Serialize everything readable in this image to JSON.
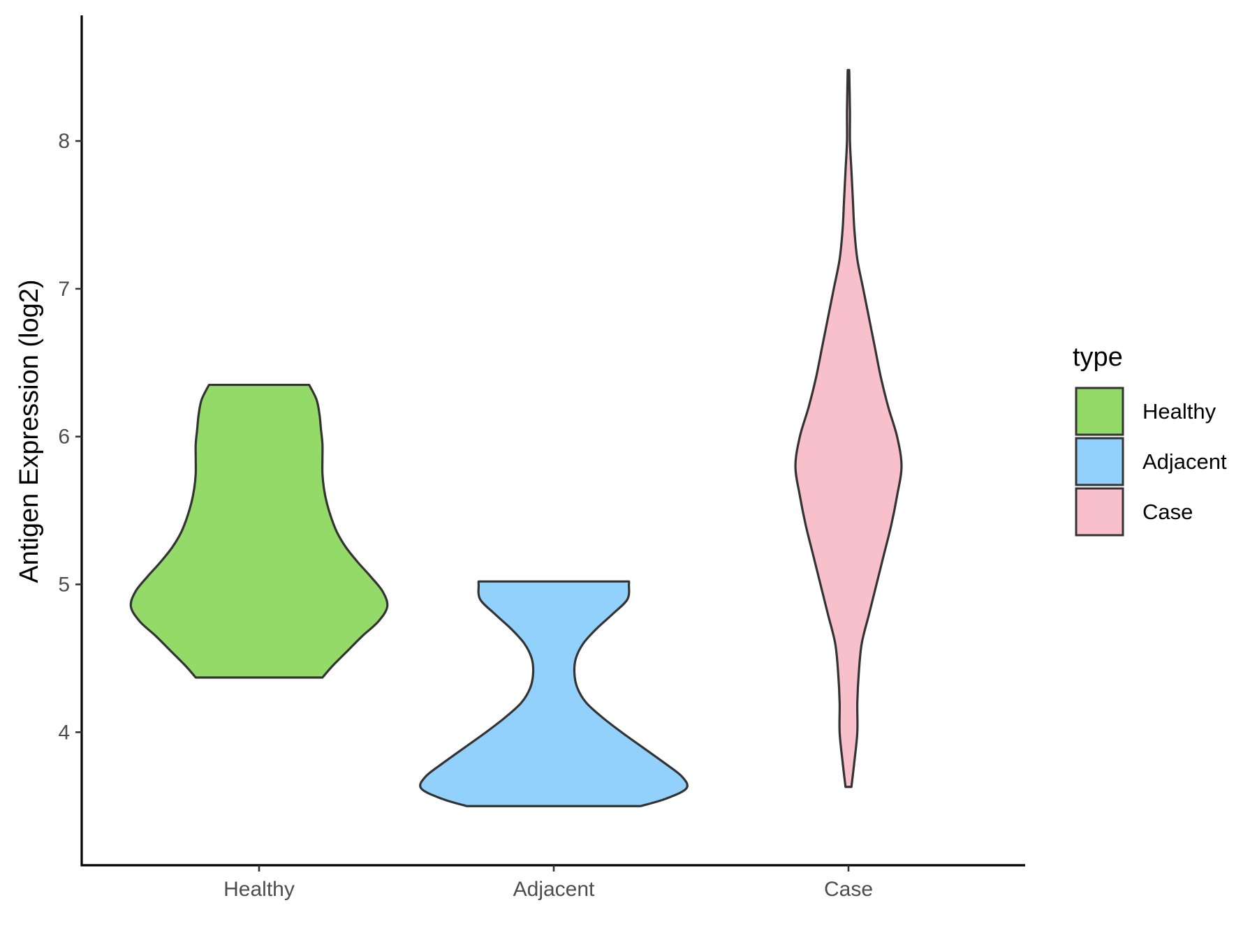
{
  "chart_data": {
    "type": "violin",
    "title": "",
    "xlabel": "",
    "ylabel": "Antigen Expression (log2)",
    "ylim": [
      3.1,
      8.85
    ],
    "yticks": [
      4,
      5,
      6,
      7,
      8
    ],
    "categories": [
      "Healthy",
      "Adjacent",
      "Case"
    ],
    "grid": false,
    "legend": {
      "title": "type",
      "position": "right",
      "entries": [
        "Healthy",
        "Adjacent",
        "Case"
      ]
    },
    "series": [
      {
        "category": "Healthy",
        "color": "#93da69",
        "min": 4.37,
        "max": 6.35,
        "density_profile": [
          [
            4.37,
            0.43
          ],
          [
            4.45,
            0.5
          ],
          [
            4.55,
            0.6
          ],
          [
            4.65,
            0.7
          ],
          [
            4.75,
            0.81
          ],
          [
            4.85,
            0.87
          ],
          [
            4.95,
            0.84
          ],
          [
            5.05,
            0.76
          ],
          [
            5.15,
            0.67
          ],
          [
            5.25,
            0.59
          ],
          [
            5.35,
            0.53
          ],
          [
            5.45,
            0.49
          ],
          [
            5.55,
            0.46
          ],
          [
            5.65,
            0.44
          ],
          [
            5.75,
            0.43
          ],
          [
            5.85,
            0.43
          ],
          [
            5.95,
            0.43
          ],
          [
            6.05,
            0.42
          ],
          [
            6.15,
            0.41
          ],
          [
            6.25,
            0.39
          ],
          [
            6.35,
            0.34
          ]
        ]
      },
      {
        "category": "Adjacent",
        "color": "#93d1fd",
        "min": 3.5,
        "max": 5.02,
        "density_profile": [
          [
            3.5,
            0.59
          ],
          [
            3.55,
            0.76
          ],
          [
            3.62,
            0.9
          ],
          [
            3.7,
            0.87
          ],
          [
            3.8,
            0.74
          ],
          [
            3.9,
            0.6
          ],
          [
            4.0,
            0.46
          ],
          [
            4.1,
            0.33
          ],
          [
            4.2,
            0.22
          ],
          [
            4.3,
            0.16
          ],
          [
            4.4,
            0.14
          ],
          [
            4.5,
            0.15
          ],
          [
            4.6,
            0.2
          ],
          [
            4.7,
            0.29
          ],
          [
            4.8,
            0.4
          ],
          [
            4.9,
            0.5
          ],
          [
            5.0,
            0.51
          ],
          [
            5.02,
            0.51
          ]
        ]
      },
      {
        "category": "Case",
        "color": "#f8c0cb",
        "min": 3.63,
        "max": 8.48,
        "density_profile": [
          [
            3.63,
            0.02
          ],
          [
            3.8,
            0.04
          ],
          [
            4.0,
            0.06
          ],
          [
            4.2,
            0.06
          ],
          [
            4.4,
            0.07
          ],
          [
            4.6,
            0.09
          ],
          [
            4.8,
            0.14
          ],
          [
            5.0,
            0.19
          ],
          [
            5.2,
            0.24
          ],
          [
            5.4,
            0.29
          ],
          [
            5.6,
            0.33
          ],
          [
            5.8,
            0.36
          ],
          [
            6.0,
            0.33
          ],
          [
            6.2,
            0.27
          ],
          [
            6.4,
            0.22
          ],
          [
            6.6,
            0.18
          ],
          [
            6.8,
            0.14
          ],
          [
            7.0,
            0.1
          ],
          [
            7.2,
            0.06
          ],
          [
            7.4,
            0.04
          ],
          [
            7.6,
            0.03
          ],
          [
            7.8,
            0.02
          ],
          [
            8.0,
            0.01
          ],
          [
            8.2,
            0.01
          ],
          [
            8.48,
            0.005
          ]
        ]
      }
    ]
  }
}
